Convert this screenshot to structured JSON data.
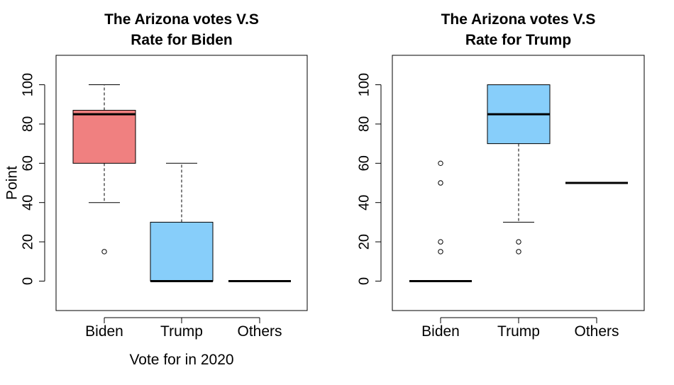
{
  "chart_data": [
    {
      "type": "boxplot",
      "title_lines": [
        "The Arizona votes V.S",
        "Rate for Biden"
      ],
      "xlabel": "Vote for in 2020",
      "ylabel": "Point",
      "ylim": [
        -15,
        115
      ],
      "yticks": [
        0,
        20,
        40,
        60,
        80,
        100
      ],
      "categories": [
        "Biden",
        "Trump",
        "Others"
      ],
      "boxes": [
        {
          "category": "Biden",
          "fill": "#F08080",
          "whisker_low": 40,
          "q1": 60,
          "median": 85,
          "q3": 87,
          "whisker_high": 100,
          "outliers": [
            15
          ]
        },
        {
          "category": "Trump",
          "fill": "#87CEFA",
          "whisker_low": 0,
          "q1": 0,
          "median": 0,
          "q3": 30,
          "whisker_high": 60,
          "outliers": []
        },
        {
          "category": "Others",
          "fill": "#87CEFA",
          "whisker_low": 0,
          "q1": 0,
          "median": 0,
          "q3": 0,
          "whisker_high": 0,
          "outliers": []
        }
      ]
    },
    {
      "type": "boxplot",
      "title_lines": [
        "The Arizona votes V.S",
        "Rate for Trump"
      ],
      "xlabel": "",
      "ylabel": "",
      "ylim": [
        -15,
        115
      ],
      "yticks": [
        0,
        20,
        40,
        60,
        80,
        100
      ],
      "categories": [
        "Biden",
        "Trump",
        "Others"
      ],
      "boxes": [
        {
          "category": "Biden",
          "fill": "#87CEFA",
          "whisker_low": 0,
          "q1": 0,
          "median": 0,
          "q3": 0,
          "whisker_high": 0,
          "outliers": [
            15,
            20,
            50,
            60
          ]
        },
        {
          "category": "Trump",
          "fill": "#87CEFA",
          "whisker_low": 30,
          "q1": 70,
          "median": 85,
          "q3": 100,
          "whisker_high": 100,
          "outliers": [
            15,
            20
          ]
        },
        {
          "category": "Others",
          "fill": "#87CEFA",
          "whisker_low": 50,
          "q1": 50,
          "median": 50,
          "q3": 50,
          "whisker_high": 50,
          "outliers": []
        }
      ]
    }
  ]
}
